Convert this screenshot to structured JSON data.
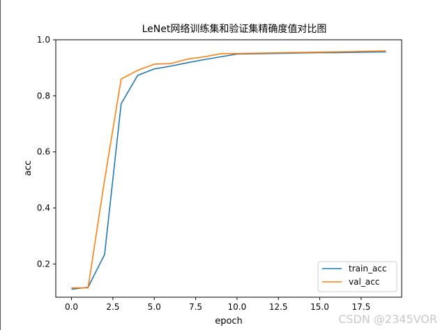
{
  "chart_data": {
    "type": "line",
    "title": "LeNet网络训练集和验证集精确度值对比图",
    "xlabel": "epoch",
    "ylabel": "acc",
    "xlim": [
      -0.95,
      19.95
    ],
    "ylim": [
      0.0815,
      1.0
    ],
    "xticks": [
      0.0,
      2.5,
      5.0,
      7.5,
      10.0,
      12.5,
      15.0,
      17.5
    ],
    "yticks": [
      0.2,
      0.4,
      0.6,
      0.8,
      1.0
    ],
    "x": [
      0,
      1,
      2,
      3,
      4,
      5,
      6,
      7,
      8,
      9,
      10,
      11,
      12,
      13,
      14,
      15,
      16,
      17,
      18,
      19
    ],
    "series": [
      {
        "name": "train_acc",
        "color": "#1f77b4",
        "values": [
          0.11,
          0.117,
          0.234,
          0.772,
          0.873,
          0.896,
          0.906,
          0.918,
          0.929,
          0.939,
          0.949,
          0.95,
          0.951,
          0.952,
          0.953,
          0.954,
          0.954,
          0.955,
          0.956,
          0.957
        ]
      },
      {
        "name": "val_acc",
        "color": "#ff7f0e",
        "values": [
          0.115,
          0.115,
          0.5,
          0.86,
          0.891,
          0.913,
          0.915,
          0.931,
          0.939,
          0.95,
          0.951,
          0.952,
          0.953,
          0.954,
          0.955,
          0.956,
          0.957,
          0.958,
          0.959,
          0.96
        ]
      }
    ],
    "grid": false,
    "legend_position": "bottom-right"
  },
  "watermark": "CSDN @2345VOR"
}
